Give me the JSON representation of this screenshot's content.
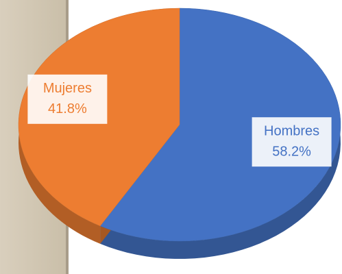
{
  "chart_data": {
    "type": "pie",
    "categories": [
      "Hombres",
      "Mujeres"
    ],
    "values": [
      58.2,
      41.8
    ],
    "value_labels": [
      "58.2%",
      "41.8%"
    ],
    "colors": [
      "#4472c4",
      "#ed7d31"
    ]
  }
}
